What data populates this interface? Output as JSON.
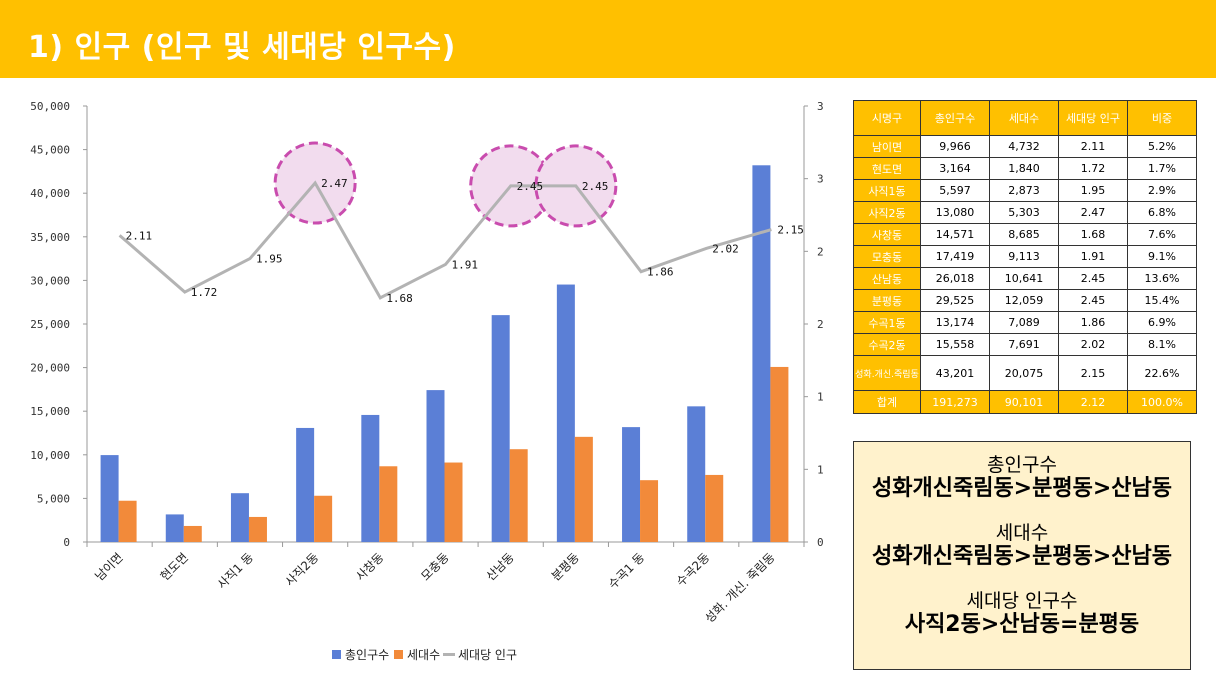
{
  "header": {
    "title": "1) 인구 (인구 및 세대당 인구수)"
  },
  "chart_data": {
    "type": "bar",
    "categories": [
      "남이면",
      "현도면",
      "사직1동",
      "사직2동",
      "사창동",
      "모충동",
      "산남동",
      "분평동",
      "수곡1동",
      "수곡2동",
      "성화.개신.죽림동"
    ],
    "category_labels": [
      "남이면",
      "현도면",
      "사직1 동",
      "사직2동",
      "사창동",
      "모충동",
      "산남동",
      "분평동",
      "수곡1 동",
      "수곡2동",
      "성화. 개신. 죽림동"
    ],
    "series": [
      {
        "name": "총인구수",
        "type": "bar",
        "axis": "left",
        "color": "#5B7FD6",
        "values": [
          9966,
          3164,
          5597,
          13080,
          14571,
          17419,
          26018,
          29525,
          13174,
          15558,
          43201
        ]
      },
      {
        "name": "세대수",
        "type": "bar",
        "axis": "left",
        "color": "#F28A3A",
        "values": [
          4732,
          1840,
          2873,
          5303,
          8685,
          9113,
          10641,
          12059,
          7089,
          7691,
          20075
        ]
      },
      {
        "name": "세대당 인구",
        "type": "line",
        "axis": "right",
        "color": "#B3B3B3",
        "values": [
          2.11,
          1.72,
          1.95,
          2.47,
          1.68,
          1.91,
          2.45,
          2.45,
          1.86,
          2.02,
          2.15
        ]
      }
    ],
    "line_labels": [
      "2.11",
      "1.72",
      "1.95",
      "2.47",
      "1.68",
      "1.91",
      "2.45",
      "2.45",
      "1.86",
      "2.02",
      "2.15"
    ],
    "left_ticks": [
      "0",
      "5,000",
      "10,000",
      "15,000",
      "20,000",
      "25,000",
      "30,000",
      "35,000",
      "40,000",
      "45,000",
      "50,000"
    ],
    "right_ticks": [
      "0",
      "1",
      "1",
      "2",
      "2",
      "3",
      "3"
    ],
    "ylim": [
      0,
      50000
    ],
    "y2lim": [
      0,
      3
    ],
    "highlight_color": "#C94CAE",
    "highlights": [
      3,
      6,
      7
    ],
    "legend_position": "bottom"
  },
  "table": {
    "headers": [
      "시명구",
      "총인구수",
      "세대수",
      "세대당 인구",
      "비중"
    ],
    "rows": [
      [
        "남이면",
        "9,966",
        "4,732",
        "2.11",
        "5.2%"
      ],
      [
        "현도면",
        "3,164",
        "1,840",
        "1.72",
        "1.7%"
      ],
      [
        "사직1동",
        "5,597",
        "2,873",
        "1.95",
        "2.9%"
      ],
      [
        "사직2동",
        "13,080",
        "5,303",
        "2.47",
        "6.8%"
      ],
      [
        "사창동",
        "14,571",
        "8,685",
        "1.68",
        "7.6%"
      ],
      [
        "모충동",
        "17,419",
        "9,113",
        "1.91",
        "9.1%"
      ],
      [
        "산남동",
        "26,018",
        "10,641",
        "2.45",
        "13.6%"
      ],
      [
        "분평동",
        "29,525",
        "12,059",
        "2.45",
        "15.4%"
      ],
      [
        "수곡1동",
        "13,174",
        "7,089",
        "1.86",
        "6.9%"
      ],
      [
        "수곡2동",
        "15,558",
        "7,691",
        "2.02",
        "8.1%"
      ],
      [
        "성화.개신.죽림동",
        "43,201",
        "20,075",
        "2.15",
        "22.6%"
      ]
    ],
    "total": [
      "합계",
      "191,273",
      "90,101",
      "2.12",
      "100.0%"
    ]
  },
  "summary": {
    "pop_title": "총인구수",
    "pop_rank": "성화개신죽림동>분평동>산남동",
    "hh_title": "세대수",
    "hh_rank": "성화개신죽림동>분평동>산남동",
    "per_title": "세대당 인구수",
    "per_rank": "사직2동>산남동=분평동"
  }
}
